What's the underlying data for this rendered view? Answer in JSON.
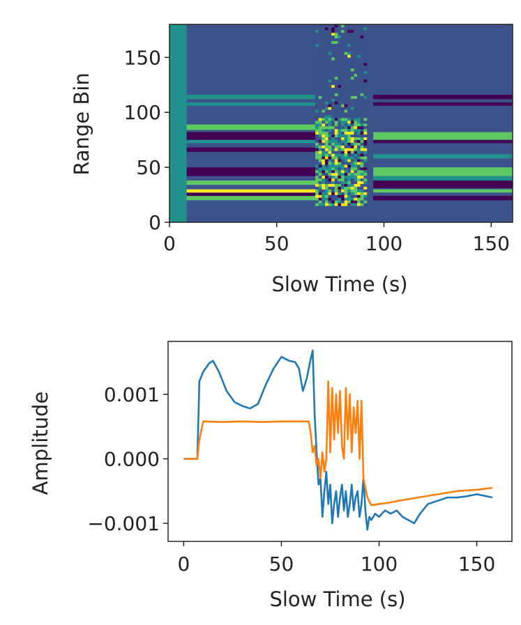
{
  "chart_data": [
    {
      "type": "heatmap",
      "title": "",
      "xlabel": "Slow Time (s)",
      "ylabel": "Range Bin",
      "xlim": [
        0,
        160
      ],
      "ylim": [
        0,
        180
      ],
      "xticks": [
        0,
        50,
        100,
        150
      ],
      "yticks": [
        0,
        50,
        100,
        150
      ],
      "xtick_labels": [
        "0",
        "50",
        "100",
        "150"
      ],
      "ytick_labels": [
        "0",
        "50",
        "100",
        "150"
      ],
      "colormap": [
        "#440154",
        "#3b528b",
        "#21918c",
        "#5ec962",
        "#fde725"
      ],
      "bands": [
        {
          "range_bin": [
            20,
            24
          ],
          "segments": [
            {
              "t": [
                8,
                70
              ],
              "value": 0.75
            },
            {
              "t": [
                95,
                160
              ],
              "value": 0.05
            }
          ]
        },
        {
          "range_bin": [
            24,
            27
          ],
          "segments": [
            {
              "t": [
                8,
                70
              ],
              "value": 0.05
            },
            {
              "t": [
                95,
                160
              ],
              "value": 0.35
            }
          ]
        },
        {
          "range_bin": [
            27,
            30
          ],
          "segments": [
            {
              "t": [
                8,
                70
              ],
              "value": 0.95
            },
            {
              "t": [
                95,
                160
              ],
              "value": 0.8
            }
          ]
        },
        {
          "range_bin": [
            31,
            34
          ],
          "segments": [
            {
              "t": [
                8,
                70
              ],
              "value": 0.3
            },
            {
              "t": [
                95,
                160
              ],
              "value": 0.1
            }
          ]
        },
        {
          "range_bin": [
            34,
            38
          ],
          "segments": [
            {
              "t": [
                8,
                70
              ],
              "value": 0.7
            },
            {
              "t": [
                95,
                160
              ],
              "value": 0.0
            }
          ]
        },
        {
          "range_bin": [
            38,
            42
          ],
          "segments": [
            {
              "t": [
                8,
                70
              ],
              "value": 0.25
            },
            {
              "t": [
                95,
                160
              ],
              "value": 0.4
            }
          ]
        },
        {
          "range_bin": [
            42,
            50
          ],
          "segments": [
            {
              "t": [
                8,
                70
              ],
              "value": 0.0
            },
            {
              "t": [
                95,
                160
              ],
              "value": 0.65
            }
          ]
        },
        {
          "range_bin": [
            50,
            54
          ],
          "segments": [
            {
              "t": [
                8,
                70
              ],
              "value": 0.15
            },
            {
              "t": [
                95,
                160
              ],
              "value": 0.3
            }
          ]
        },
        {
          "range_bin": [
            58,
            62
          ],
          "segments": [
            {
              "t": [
                8,
                70
              ],
              "value": 0.3
            },
            {
              "t": [
                95,
                160
              ],
              "value": 0.4
            }
          ]
        },
        {
          "range_bin": [
            64,
            68
          ],
          "segments": [
            {
              "t": [
                8,
                70
              ],
              "value": 0.05
            },
            {
              "t": [
                95,
                160
              ],
              "value": 0.25
            }
          ]
        },
        {
          "range_bin": [
            72,
            75
          ],
          "segments": [
            {
              "t": [
                8,
                70
              ],
              "value": 0.55
            },
            {
              "t": [
                95,
                160
              ],
              "value": 0.05
            }
          ]
        },
        {
          "range_bin": [
            75,
            82
          ],
          "segments": [
            {
              "t": [
                8,
                70
              ],
              "value": 0.0
            },
            {
              "t": [
                95,
                160
              ],
              "value": 0.85
            }
          ]
        },
        {
          "range_bin": [
            84,
            89
          ],
          "segments": [
            {
              "t": [
                8,
                70
              ],
              "value": 0.65
            },
            {
              "t": [
                95,
                160
              ],
              "value": 0.35
            }
          ]
        },
        {
          "range_bin": [
            96,
            99
          ],
          "segments": [
            {
              "t": [
                8,
                70
              ],
              "value": 0.2
            },
            {
              "t": [
                95,
                160
              ],
              "value": 0.15
            }
          ]
        },
        {
          "range_bin": [
            106,
            109
          ],
          "segments": [
            {
              "t": [
                8,
                70
              ],
              "value": 0.45
            },
            {
              "t": [
                95,
                160
              ],
              "value": 0.1
            }
          ]
        },
        {
          "range_bin": [
            112,
            116
          ],
          "segments": [
            {
              "t": [
                8,
                70
              ],
              "value": 0.6
            },
            {
              "t": [
                95,
                160
              ],
              "value": 0.05
            }
          ]
        },
        {
          "range_bin": [
            132,
            135
          ],
          "segments": [
            {
              "t": [
                8,
                70
              ],
              "value": 0.25
            },
            {
              "t": [
                95,
                160
              ],
              "value": 0.2
            }
          ]
        }
      ],
      "noisy_region": {
        "t": [
          68,
          92
        ],
        "range_bin": [
          15,
          180
        ]
      }
    },
    {
      "type": "line",
      "title": "",
      "xlabel": "Slow Time (s)",
      "ylabel": "Amplitude",
      "xlim": [
        -8,
        168
      ],
      "ylim": [
        -0.00128,
        0.00182
      ],
      "xticks": [
        0,
        50,
        100,
        150
      ],
      "yticks": [
        -0.001,
        0.0,
        0.001
      ],
      "xtick_labels": [
        "0",
        "50",
        "100",
        "150"
      ],
      "ytick_labels": [
        "−0.001",
        "0.000",
        "0.001"
      ],
      "series": [
        {
          "name": "blue",
          "color": "#1f77b4",
          "x": [
            0,
            7,
            8,
            10,
            13,
            15,
            18,
            22,
            26,
            30,
            34,
            38,
            42,
            46,
            50,
            54,
            57,
            59,
            61,
            63,
            64,
            65,
            66,
            67,
            68,
            69,
            70,
            71,
            72,
            73,
            74,
            75,
            76,
            77,
            78,
            79,
            80,
            81,
            82,
            83,
            84,
            85,
            86,
            87,
            88,
            89,
            90,
            91,
            92,
            93,
            94,
            95,
            96,
            98,
            100,
            103,
            106,
            109,
            112,
            115,
            118,
            121,
            125,
            130,
            135,
            140,
            145,
            150,
            155,
            158
          ],
          "y": [
            0.0,
            0.0,
            0.0012,
            0.00135,
            0.00148,
            0.00152,
            0.00135,
            0.00105,
            0.00088,
            0.00082,
            0.00078,
            0.00085,
            0.00115,
            0.0014,
            0.00158,
            0.00152,
            0.0015,
            0.0014,
            0.00105,
            0.00125,
            0.0014,
            0.00155,
            0.00168,
            0.0007,
            0.0001,
            -0.0004,
            -0.0003,
            -0.0009,
            -0.0005,
            -0.0002,
            -0.0007,
            -0.0004,
            -0.001,
            -0.0007,
            -0.0005,
            -0.0009,
            -0.0006,
            -0.0004,
            -0.0008,
            -0.0005,
            -0.0009,
            -0.0007,
            -0.0004,
            -0.0008,
            -0.0006,
            -0.0005,
            -0.0009,
            -0.0007,
            -0.0003,
            -0.0008,
            -0.0011,
            -0.0009,
            -0.00095,
            -0.00085,
            -0.0009,
            -0.0008,
            -0.00085,
            -0.0008,
            -0.0009,
            -0.00095,
            -0.001,
            -0.00085,
            -0.0007,
            -0.00065,
            -0.0006,
            -0.0006,
            -0.00058,
            -0.00055,
            -0.00058,
            -0.0006
          ]
        },
        {
          "name": "orange",
          "color": "#ff7f0e",
          "x": [
            0,
            7,
            8,
            10,
            20,
            30,
            40,
            50,
            60,
            64,
            65,
            66,
            67,
            68,
            69,
            70,
            71,
            72,
            73,
            74,
            75,
            76,
            77,
            78,
            79,
            80,
            81,
            82,
            83,
            84,
            85,
            86,
            87,
            88,
            89,
            90,
            91,
            92,
            94,
            96,
            100,
            105,
            110,
            120,
            130,
            140,
            150,
            158
          ],
          "y": [
            0.0,
            0.0,
            0.0003,
            0.00058,
            0.00057,
            0.00058,
            0.00057,
            0.00058,
            0.00058,
            0.00058,
            0.0004,
            0.0001,
            0.0002,
            -0.0001,
            0.0,
            -0.0003,
            0.0001,
            -0.0002,
            0.0,
            0.0012,
            0.0001,
            0.0011,
            0.0003,
            0.001,
            0.0004,
            0.00105,
            0.0002,
            0.0,
            0.0011,
            0.0003,
            0.001,
            0.0001,
            0.0008,
            0.0004,
            0.0009,
            0.0,
            0.0009,
            -0.0003,
            -0.0006,
            -0.00072,
            -0.0007,
            -0.00068,
            -0.00065,
            -0.0006,
            -0.00055,
            -0.0005,
            -0.00048,
            -0.00045
          ]
        }
      ]
    }
  ]
}
